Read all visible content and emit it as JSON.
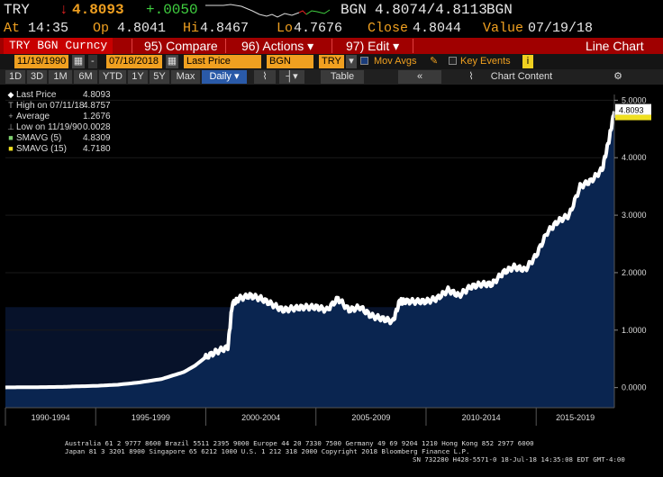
{
  "quote": {
    "ticker": "TRY",
    "arrow": "↓",
    "last": "4.8093",
    "change": "+.0050",
    "currency": "BGN",
    "bid_ask": "4.8074/4.8113",
    "currency2": "BGN",
    "at_label": "At",
    "time": "14:35",
    "open_label": "Op",
    "open": "4.8041",
    "high_label": "Hi",
    "high": "4.8467",
    "low_label": "Lo",
    "low": "4.7676",
    "close_label": "Close",
    "close": "4.8044",
    "value_label": "Value",
    "value_date": "07/19/18"
  },
  "menubar": {
    "title": "TRY BGN Curncy",
    "compare": "95) Compare",
    "actions": "96) Actions ▾",
    "edit": "97) Edit ▾",
    "chart_type": "Line Chart"
  },
  "controls": {
    "start_date": "11/19/1990",
    "end_date": "07/18/2018",
    "field": "Last Price",
    "currency": "BGN",
    "security": "TRY",
    "mov_avgs": "Mov Avgs",
    "key_events": "Key Events"
  },
  "periods": {
    "items": [
      "1D",
      "3D",
      "1M",
      "6M",
      "YTD",
      "1Y",
      "5Y",
      "Max"
    ],
    "frequency": "Daily ▾",
    "table": "Table",
    "chart_content": "Chart Content"
  },
  "legend": {
    "rows": [
      {
        "label": "Last Price",
        "value": "4.8093",
        "color": "#ffffff",
        "mark": "◆"
      },
      {
        "label": "High on 07/11/18",
        "value": "4.8757",
        "color": "#aaaaaa",
        "mark": "T"
      },
      {
        "label": "Average",
        "value": "1.2676",
        "color": "#aaaaaa",
        "mark": "+"
      },
      {
        "label": "Low on 11/19/90",
        "value": "0.0028",
        "color": "#aaaaaa",
        "mark": "⊥"
      },
      {
        "label": "SMAVG (5)",
        "value": "4.8309",
        "color": "#7ed070",
        "mark": "■"
      },
      {
        "label": "SMAVG (15)",
        "value": "4.7180",
        "color": "#f0e020",
        "mark": "■"
      }
    ]
  },
  "chart_data": {
    "type": "area",
    "title": "",
    "xlabel": "",
    "ylabel": "",
    "ylim": [
      -0.35,
      5.1
    ],
    "yticks": [
      "5.0000",
      "4.0000",
      "3.0000",
      "2.0000",
      "1.0000",
      "0.0000"
    ],
    "ytick_values": [
      5,
      4,
      3,
      2,
      1,
      0
    ],
    "xticks": [
      "1990-1994",
      "1995-1999",
      "2000-2004",
      "2005-2009",
      "2010-2014",
      "2015-2019"
    ],
    "last_label": "4.8093",
    "smavg_label": "4.7180",
    "series": [
      {
        "name": "Last Price",
        "x": [
          1990.9,
          1991.5,
          1992.5,
          1993.5,
          1994.0,
          1995.0,
          1996.0,
          1997.0,
          1998.0,
          1999.0,
          1999.5,
          2000.0,
          2000.5,
          2001.0,
          2001.2,
          2001.5,
          2002.0,
          2002.5,
          2003.0,
          2003.5,
          2004.0,
          2004.5,
          2005.0,
          2005.5,
          2006.0,
          2006.5,
          2007.0,
          2007.5,
          2008.0,
          2008.5,
          2008.8,
          2009.0,
          2009.5,
          2010.0,
          2010.5,
          2011.0,
          2011.5,
          2012.0,
          2012.5,
          2013.0,
          2013.5,
          2014.0,
          2014.5,
          2015.0,
          2015.5,
          2016.0,
          2016.5,
          2017.0,
          2017.5,
          2018.0,
          2018.3,
          2018.55
        ],
        "y": [
          0.003,
          0.005,
          0.008,
          0.012,
          0.02,
          0.03,
          0.05,
          0.09,
          0.15,
          0.27,
          0.38,
          0.53,
          0.63,
          0.7,
          1.45,
          1.55,
          1.6,
          1.55,
          1.45,
          1.35,
          1.38,
          1.4,
          1.4,
          1.35,
          1.55,
          1.35,
          1.4,
          1.25,
          1.2,
          1.15,
          1.5,
          1.5,
          1.5,
          1.5,
          1.55,
          1.7,
          1.6,
          1.75,
          1.8,
          1.8,
          2.0,
          2.1,
          2.05,
          2.3,
          2.7,
          2.9,
          3.0,
          3.5,
          3.6,
          3.8,
          4.3,
          4.8093
        ]
      }
    ]
  },
  "footer": {
    "line1": "Australia 61 2 9777 8600 Brazil 5511 2395 9000 Europe 44 20 7330 7500 Germany 49 69 9204 1210 Hong Kong 852 2977 6000",
    "line2": "Japan 81 3 3201 8900        Singapore 65 6212 1000        U.S. 1 212 318 2000             Copyright 2018 Bloomberg Finance L.P.",
    "line3": "SN 732280 H428-5571-0 18-Jul-18 14:35:08 EDT  GMT-4:00"
  },
  "colors": {
    "area": "#0a2550",
    "area_dark": "#071b3d",
    "line": "#ffffff",
    "menubar": "#a00000",
    "accent": "#f0a020"
  }
}
